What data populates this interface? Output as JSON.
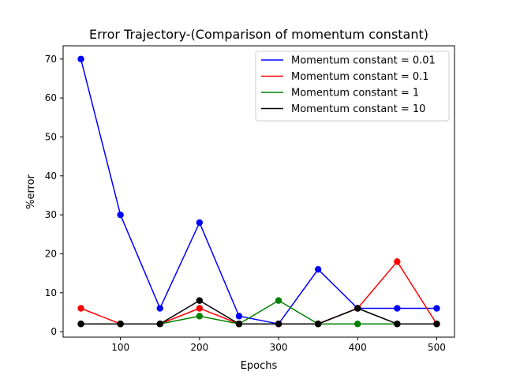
{
  "chart_data": {
    "type": "line",
    "title": "Error Trajectory-(Comparison of momentum constant)",
    "xlabel": "Epochs",
    "ylabel": "%error",
    "x": [
      50,
      100,
      150,
      200,
      250,
      300,
      350,
      400,
      450,
      500
    ],
    "xlim": [
      27.5,
      522.5
    ],
    "ylim": [
      -1.4,
      73.4
    ],
    "xticks": [
      100,
      200,
      300,
      400,
      500
    ],
    "xtick_labels": [
      "100",
      "200",
      "300",
      "400",
      "500"
    ],
    "yticks": [
      0,
      10,
      20,
      30,
      40,
      50,
      60,
      70
    ],
    "ytick_labels": [
      "0",
      "10",
      "20",
      "30",
      "40",
      "50",
      "60",
      "70"
    ],
    "grid": false,
    "legend_position": "top-right",
    "series": [
      {
        "name": "Momentum constant = 0.01",
        "color": "#0000ff",
        "values": [
          70,
          30,
          6,
          28,
          4,
          2,
          16,
          6,
          6,
          6
        ]
      },
      {
        "name": "Momentum constant = 0.1",
        "color": "#ff0000",
        "values": [
          6,
          2,
          2,
          6,
          2,
          2,
          2,
          6,
          18,
          2
        ]
      },
      {
        "name": "Momentum constant = 1",
        "color": "#008000",
        "values": [
          2,
          2,
          2,
          4,
          2,
          8,
          2,
          2,
          2,
          2
        ]
      },
      {
        "name": "Momentum constant = 10",
        "color": "#000000",
        "values": [
          2,
          2,
          2,
          8,
          2,
          2,
          2,
          6,
          2,
          2
        ]
      }
    ]
  }
}
